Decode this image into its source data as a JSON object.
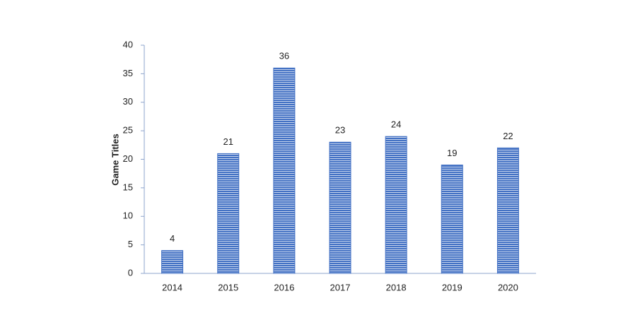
{
  "chart_data": {
    "type": "bar",
    "y_label": "Game Titles",
    "categories": [
      "2014",
      "2015",
      "2016",
      "2017",
      "2018",
      "2019",
      "2020"
    ],
    "values": [
      4,
      21,
      36,
      23,
      24,
      19,
      22
    ],
    "color": "#4472c4",
    "ylim": [
      0,
      40
    ],
    "yticks": [
      0,
      5,
      10,
      15,
      20,
      25,
      30,
      35,
      40
    ],
    "grid": false,
    "data_labels": true
  }
}
